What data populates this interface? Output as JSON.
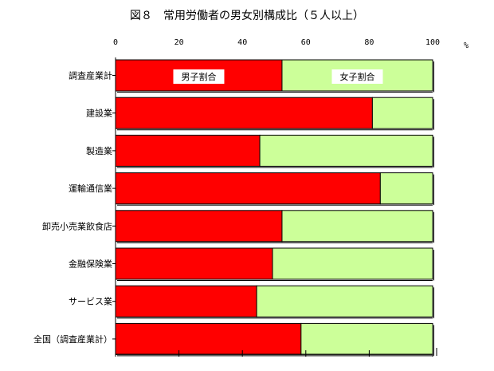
{
  "chart_data": {
    "type": "bar",
    "orientation": "horizontal",
    "stacked": true,
    "title": "図８　常用労働者の男女別構成比（５人以上）",
    "unit": "%",
    "xlim": [
      0,
      100
    ],
    "x_ticks": [
      0,
      20,
      40,
      60,
      80,
      100
    ],
    "grid": false,
    "categories": [
      "調査産業計",
      "建設業",
      "製造業",
      "運輸通信業",
      "卸売小売業飲食店",
      "金融保険業",
      "サービス業",
      "全国（調査産業計）"
    ],
    "series": [
      {
        "name": "男子割合",
        "color": "#ff0000",
        "values": [
          52.5,
          81,
          45.5,
          83.5,
          52.5,
          49.5,
          44.5,
          58.5
        ]
      },
      {
        "name": "女子割合",
        "color": "#ccff99",
        "values": [
          47.5,
          19,
          54.5,
          16.5,
          47.5,
          50.5,
          55.5,
          41.5
        ]
      }
    ]
  }
}
